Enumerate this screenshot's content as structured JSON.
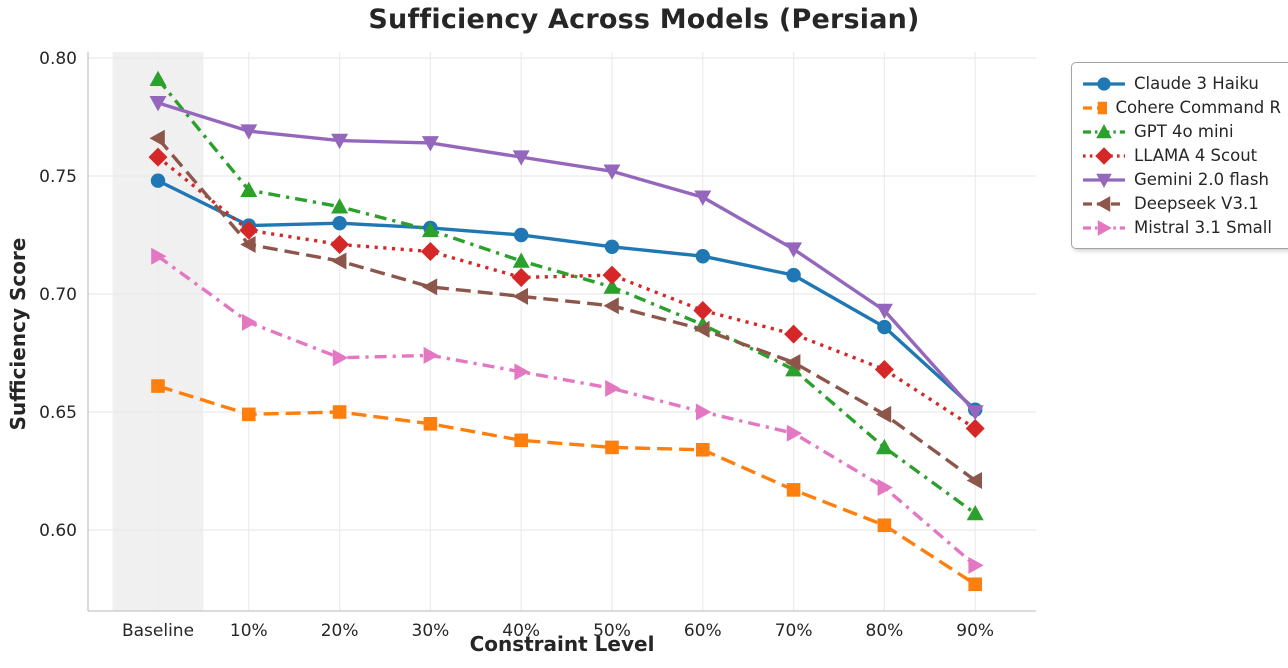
{
  "chart_data": {
    "type": "line",
    "title": "Sufficiency Across Models (Persian)",
    "xlabel": "Constraint Level",
    "ylabel": "Sufficiency Score",
    "categories": [
      "Baseline",
      "10%",
      "20%",
      "30%",
      "40%",
      "50%",
      "60%",
      "70%",
      "80%",
      "90%"
    ],
    "yticks": [
      {
        "label": "0.80",
        "value": 0.8
      },
      {
        "label": "0.75",
        "value": 0.75
      },
      {
        "label": "0.70",
        "value": 0.7
      },
      {
        "label": "0.65",
        "value": 0.65
      },
      {
        "label": "0.60",
        "value": 0.6
      }
    ],
    "ylim": [
      0.566,
      0.802
    ],
    "grid": true,
    "legend_position": "outside-right",
    "baseline_band": {
      "category": "Baseline",
      "color": "#e8e8e8",
      "opacity": 0.65
    },
    "series": [
      {
        "name": "Claude 3 Haiku",
        "color": "#1f77b4",
        "linestyle": "solid",
        "marker": "circle",
        "values": [
          0.748,
          0.729,
          0.73,
          0.728,
          0.725,
          0.72,
          0.716,
          0.708,
          0.686,
          0.651
        ]
      },
      {
        "name": "Cohere Command R",
        "color": "#ff7f0e",
        "linestyle": "dashed",
        "marker": "square",
        "values": [
          0.661,
          0.649,
          0.65,
          0.645,
          0.638,
          0.635,
          0.634,
          0.617,
          0.602,
          0.577
        ]
      },
      {
        "name": "GPT 4o mini",
        "color": "#2ca02c",
        "linestyle": "dashdot",
        "marker": "triangle-up",
        "values": [
          0.791,
          0.744,
          0.737,
          0.727,
          0.714,
          0.703,
          0.687,
          0.668,
          0.635,
          0.607
        ]
      },
      {
        "name": "LLAMA 4 Scout",
        "color": "#d62728",
        "linestyle": "dotted",
        "marker": "diamond",
        "values": [
          0.758,
          0.727,
          0.721,
          0.718,
          0.707,
          0.708,
          0.693,
          0.683,
          0.668,
          0.643
        ]
      },
      {
        "name": "Gemini 2.0 flash",
        "color": "#9467bd",
        "linestyle": "solid",
        "marker": "triangle-down",
        "values": [
          0.781,
          0.769,
          0.765,
          0.764,
          0.758,
          0.752,
          0.741,
          0.719,
          0.693,
          0.65
        ]
      },
      {
        "name": "Deepseek V3.1",
        "color": "#8c564b",
        "linestyle": "dashed",
        "marker": "triangle-left",
        "values": [
          0.766,
          0.721,
          0.714,
          0.703,
          0.699,
          0.695,
          0.685,
          0.671,
          0.649,
          0.621
        ]
      },
      {
        "name": "Mistral 3.1 Small",
        "color": "#e377c2",
        "linestyle": "dashdot",
        "marker": "triangle-right",
        "values": [
          0.716,
          0.688,
          0.673,
          0.674,
          0.667,
          0.66,
          0.65,
          0.641,
          0.618,
          0.585
        ]
      }
    ]
  }
}
